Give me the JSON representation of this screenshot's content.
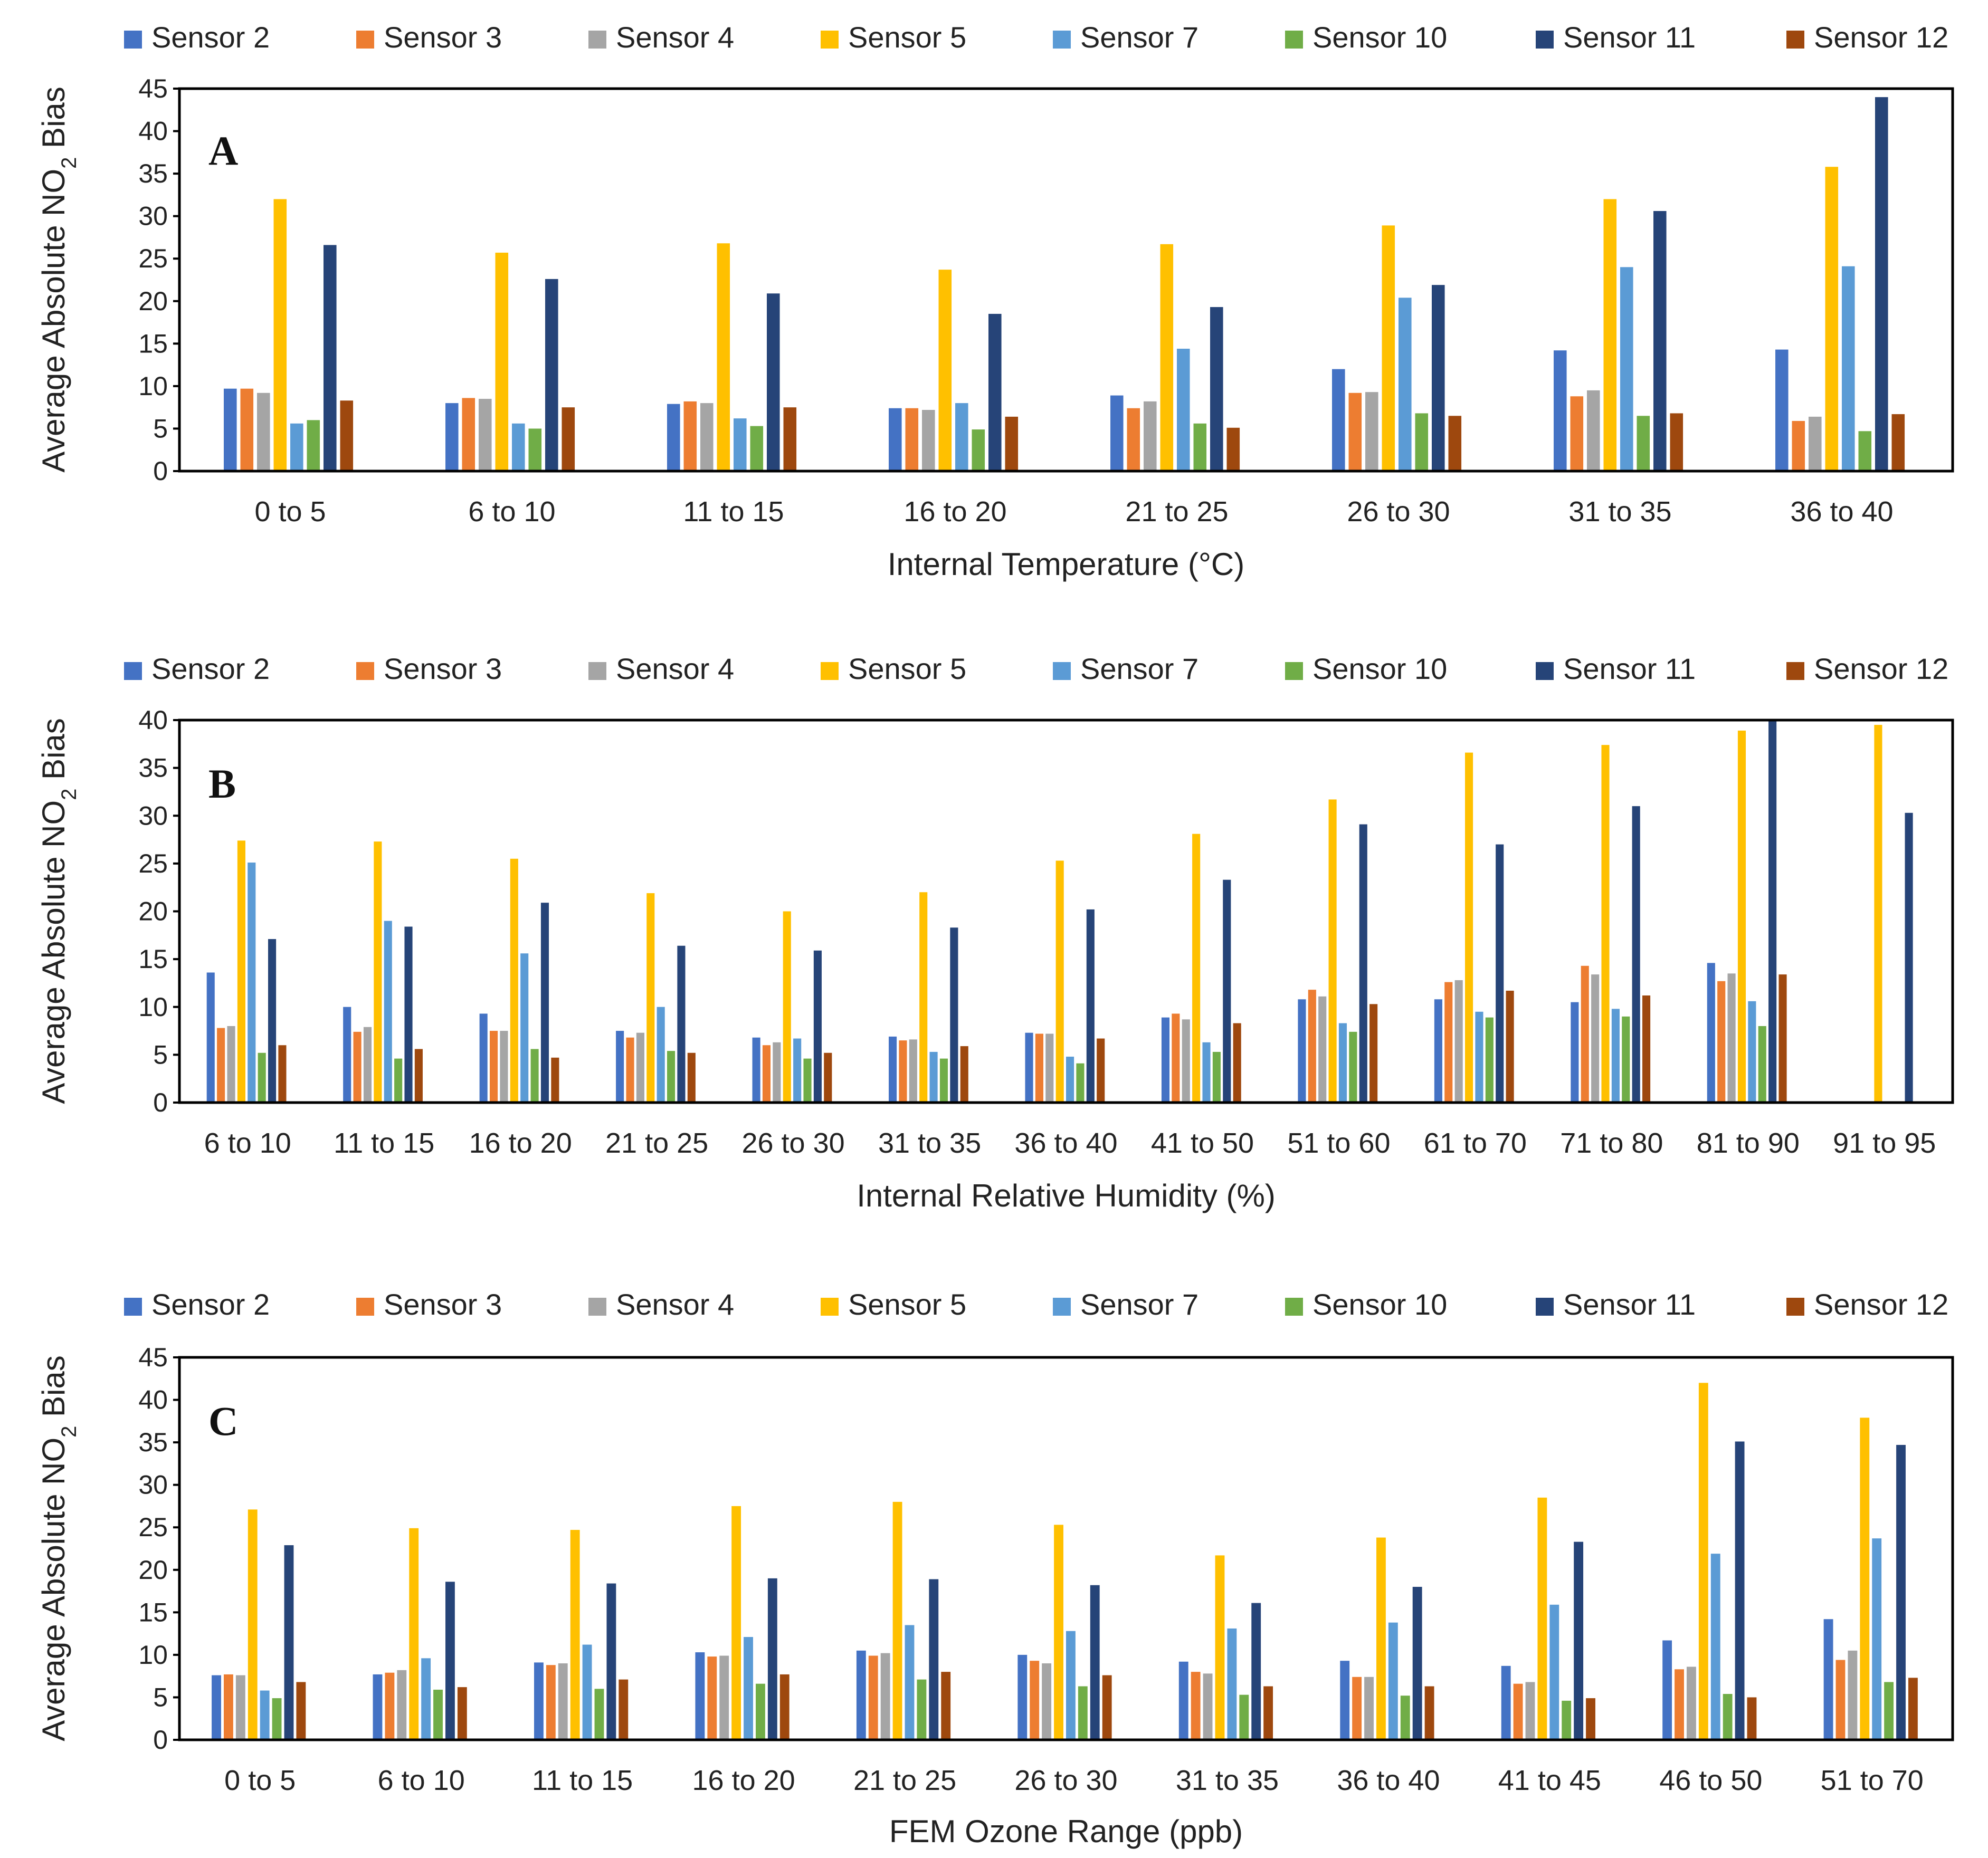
{
  "series": [
    {
      "name": "Sensor 2",
      "color": "#4472C4"
    },
    {
      "name": "Sensor 3",
      "color": "#ED7D31"
    },
    {
      "name": "Sensor 4",
      "color": "#A5A5A5"
    },
    {
      "name": "Sensor 5",
      "color": "#FFC000"
    },
    {
      "name": "Sensor 7",
      "color": "#5B9BD5"
    },
    {
      "name": "Sensor 10",
      "color": "#70AD47"
    },
    {
      "name": "Sensor 11",
      "color": "#264478"
    },
    {
      "name": "Sensor 12",
      "color": "#9E480E"
    }
  ],
  "chart_data": [
    {
      "type": "bar",
      "panel_label": "A",
      "xlabel": "Internal Temperature (°C)",
      "ylabel_main": "Average Absolute NO",
      "ylabel_sub": "2",
      "ylabel_end": " Bias",
      "ylim": [
        0,
        45
      ],
      "yticks": [
        0,
        5,
        10,
        15,
        20,
        25,
        30,
        35,
        40,
        45
      ],
      "categories": [
        "0 to 5",
        "6 to 10",
        "11 to 15",
        "16 to 20",
        "21 to 25",
        "26 to 30",
        "31 to 35",
        "36 to 40"
      ],
      "values": [
        [
          9.7,
          9.7,
          9.2,
          32.0,
          5.6,
          6.0,
          26.6,
          8.3
        ],
        [
          8.0,
          8.6,
          8.5,
          25.7,
          5.6,
          5.0,
          22.6,
          7.5
        ],
        [
          7.9,
          8.2,
          8.0,
          26.8,
          6.2,
          5.3,
          20.9,
          7.5
        ],
        [
          7.4,
          7.4,
          7.2,
          23.7,
          8.0,
          4.9,
          18.5,
          6.4
        ],
        [
          8.9,
          7.4,
          8.2,
          26.7,
          14.4,
          5.6,
          19.3,
          5.1
        ],
        [
          12.0,
          9.2,
          9.3,
          28.9,
          20.4,
          6.8,
          21.9,
          6.5
        ],
        [
          14.2,
          8.8,
          9.5,
          32.0,
          24.0,
          6.5,
          30.6,
          6.8
        ],
        [
          14.3,
          5.9,
          6.4,
          35.8,
          24.1,
          4.7,
          44.0,
          6.7
        ]
      ]
    },
    {
      "type": "bar",
      "panel_label": "B",
      "xlabel": "Internal Relative Humidity (%)",
      "ylabel_main": "Average Absolute NO",
      "ylabel_sub": "2",
      "ylabel_end": " Bias",
      "ylim": [
        0,
        40
      ],
      "yticks": [
        0,
        5,
        10,
        15,
        20,
        25,
        30,
        35,
        40
      ],
      "categories": [
        "6 to 10",
        "11 to 15",
        "16 to 20",
        "21 to 25",
        "26 to 30",
        "31 to 35",
        "36 to 40",
        "41 to 50",
        "51 to 60",
        "61 to 70",
        "71 to 80",
        "81 to 90",
        "91 to 95"
      ],
      "values": [
        [
          13.6,
          7.8,
          8.0,
          27.4,
          25.1,
          5.2,
          17.1,
          6.0
        ],
        [
          10.0,
          7.4,
          7.9,
          27.3,
          19.0,
          4.6,
          18.4,
          5.6
        ],
        [
          9.3,
          7.5,
          7.5,
          25.5,
          15.6,
          5.6,
          20.9,
          4.7
        ],
        [
          7.5,
          6.8,
          7.3,
          21.9,
          10.0,
          5.4,
          16.4,
          5.2
        ],
        [
          6.8,
          6.0,
          6.3,
          20.0,
          6.7,
          4.6,
          15.9,
          5.2
        ],
        [
          6.9,
          6.5,
          6.6,
          22.0,
          5.3,
          4.6,
          18.3,
          5.9
        ],
        [
          7.3,
          7.2,
          7.2,
          25.3,
          4.8,
          4.1,
          20.2,
          6.7
        ],
        [
          8.9,
          9.3,
          8.7,
          28.1,
          6.3,
          5.3,
          23.3,
          8.3
        ],
        [
          10.8,
          11.8,
          11.1,
          31.7,
          8.3,
          7.4,
          29.1,
          10.3
        ],
        [
          10.8,
          12.6,
          12.8,
          36.6,
          9.5,
          8.9,
          27.0,
          11.7
        ],
        [
          10.5,
          14.3,
          13.4,
          37.4,
          9.8,
          9.0,
          31.0,
          11.2
        ],
        [
          14.6,
          12.7,
          13.5,
          38.9,
          10.6,
          8.0,
          40.0,
          13.4
        ],
        [
          null,
          null,
          null,
          39.5,
          null,
          null,
          30.3,
          null
        ]
      ]
    },
    {
      "type": "bar",
      "panel_label": "C",
      "xlabel": "FEM Ozone Range (ppb)",
      "ylabel_main": "Average Absolute NO",
      "ylabel_sub": "2",
      "ylabel_end": " Bias",
      "ylim": [
        0,
        45
      ],
      "yticks": [
        0,
        5,
        10,
        15,
        20,
        25,
        30,
        35,
        40,
        45
      ],
      "categories": [
        "0 to 5",
        "6 to 10",
        "11 to 15",
        "16 to 20",
        "21 to 25",
        "26 to 30",
        "31 to 35",
        "36 to 40",
        "41 to 45",
        "46 to 50",
        "51 to 70"
      ],
      "values": [
        [
          7.6,
          7.7,
          7.6,
          27.1,
          5.8,
          4.9,
          22.9,
          6.8
        ],
        [
          7.7,
          7.9,
          8.2,
          24.9,
          9.6,
          5.9,
          18.6,
          6.2
        ],
        [
          9.1,
          8.8,
          9.0,
          24.7,
          11.2,
          6.0,
          18.4,
          7.1
        ],
        [
          10.3,
          9.8,
          9.9,
          27.5,
          12.1,
          6.6,
          19.0,
          7.7
        ],
        [
          10.5,
          9.9,
          10.2,
          28.0,
          13.5,
          7.1,
          18.9,
          8.0
        ],
        [
          10.0,
          9.3,
          9.0,
          25.3,
          12.8,
          6.3,
          18.2,
          7.6
        ],
        [
          9.2,
          8.0,
          7.8,
          21.7,
          13.1,
          5.3,
          16.1,
          6.3
        ],
        [
          9.3,
          7.4,
          7.4,
          23.8,
          13.8,
          5.2,
          18.0,
          6.3
        ],
        [
          8.7,
          6.6,
          6.8,
          28.5,
          15.9,
          4.6,
          23.3,
          4.9
        ],
        [
          11.7,
          8.3,
          8.6,
          42.0,
          21.9,
          5.4,
          35.1,
          5.0
        ],
        [
          14.2,
          9.4,
          10.5,
          37.9,
          23.7,
          6.8,
          34.7,
          7.3
        ]
      ]
    }
  ]
}
